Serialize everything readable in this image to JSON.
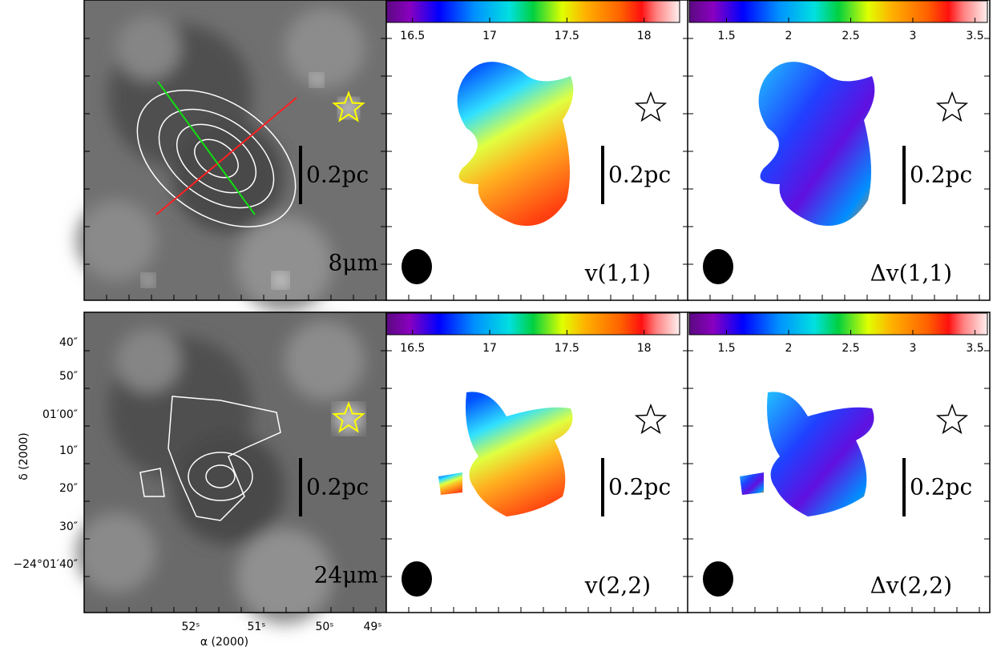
{
  "panels": [
    {
      "label": "8μm",
      "scale_bar": "0.2pc"
    },
    {
      "label": "v(1,1)",
      "scale_bar": "0.2pc"
    },
    {
      "label": "Δv(1,1)",
      "scale_bar": "0.2pc"
    },
    {
      "label": "24μm",
      "scale_bar": "0.2pc"
    },
    {
      "label": "v(2,2)",
      "scale_bar": "0.2pc"
    },
    {
      "label": "Δv(2,2)",
      "scale_bar": "0.2pc"
    }
  ],
  "colorbars": [
    {
      "clim": [
        16.33,
        18.23
      ],
      "ticks": [
        16.5,
        17,
        17.5,
        18
      ]
    },
    {
      "clim": [
        1.2,
        3.6
      ],
      "ticks": [
        1.5,
        2,
        2.5,
        3,
        3.5
      ]
    }
  ],
  "axes": {
    "xlabel": "α (2000)",
    "ylabel": "δ (2000)",
    "xticks": [
      "52ˢ",
      "51ˢ",
      "50ˢ",
      "49ˢ"
    ],
    "yticks": [
      "40″",
      "50″",
      "01′00″",
      "10″",
      "20″",
      "30″",
      "−24°01′40″"
    ]
  }
}
